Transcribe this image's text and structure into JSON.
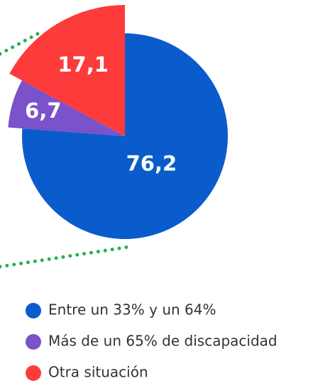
{
  "chart_data": {
    "type": "pie",
    "categories": [
      "Entre un 33% y un 64%",
      "Más de un 65% de discapacidad",
      "Otra situación"
    ],
    "values": [
      76.2,
      6.7,
      17.1
    ],
    "value_labels": [
      "76,2",
      "6,7",
      "17,1"
    ],
    "colors": [
      "#0a5ccc",
      "#7b52c9",
      "#fd3b3b"
    ]
  }
}
